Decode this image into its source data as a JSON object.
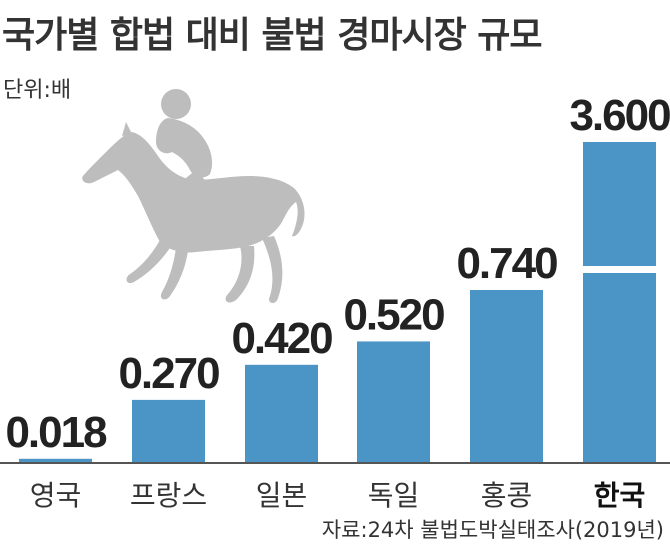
{
  "title": "국가별 합법 대비 불법 경마시장 규모",
  "unit": "단위:배",
  "source": "자료:24차 불법도박실태조사(2019년)",
  "colors": {
    "bar": "#4a95c6",
    "axis": "#555555",
    "silhouette": "#bdbdbd"
  },
  "chart_data": {
    "type": "bar",
    "categories": [
      "영국",
      "프랑스",
      "일본",
      "독일",
      "홍콩",
      "한국"
    ],
    "values": [
      0.018,
      0.27,
      0.42,
      0.52,
      0.74,
      3.6
    ],
    "labels": [
      "0.018",
      "0.270",
      "0.420",
      "0.520",
      "0.740",
      "3.600"
    ],
    "highlight": "한국",
    "axis_break": true,
    "gridlines": false,
    "legend": "none"
  }
}
